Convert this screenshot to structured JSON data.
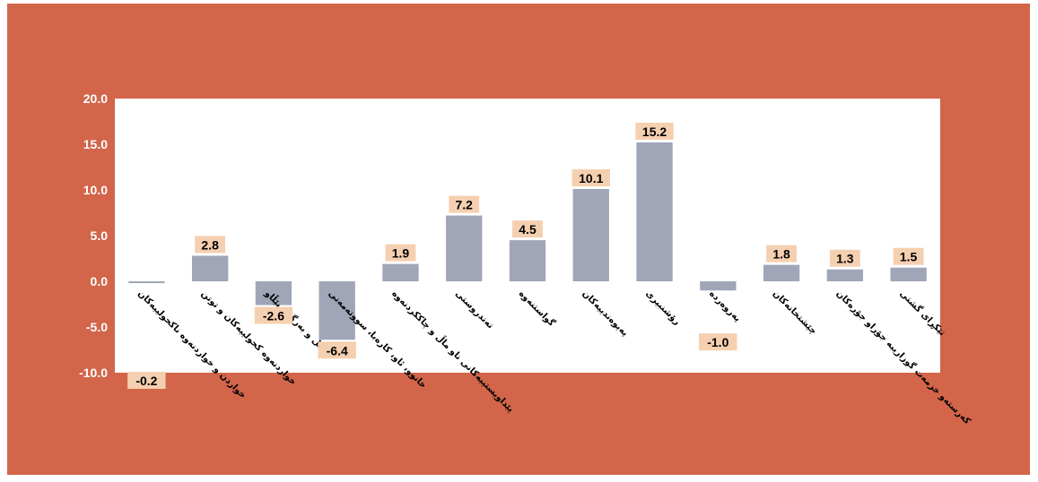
{
  "colors": {
    "background": "#D2654A",
    "plot_area": "#ffffff",
    "bar": "#A0A6B8",
    "label_box": "#F5D0B0"
  },
  "chart_data": {
    "type": "bar",
    "categories": [
      "خواردن و خواردنەوە ناکحولییەکان",
      "خواردنەوە کحولییەکان و توتن",
      "جل و بەرگ و پێڵاو",
      "خانوو، ئاو، کارەبا، سووتەمەنی",
      "پێداویستییەکانی ناو ماڵ و چاککردنەوە",
      "تەندروستی",
      "گواستنەوە",
      "پەیوەندییەکان",
      "رۆشنبیری",
      "پەروەردە",
      "چێشتخانەکان",
      "کەرستەو خزمەت گوزاریبە جۆراو جۆرەکان",
      "تێکڕای گشتی"
    ],
    "values": [
      -0.2,
      2.8,
      -2.6,
      -6.4,
      1.9,
      7.2,
      4.5,
      10.1,
      15.2,
      -1.0,
      1.8,
      1.3,
      1.5
    ],
    "value_labels": [
      "-0.2",
      "2.8",
      "-2.6",
      "-6.4",
      "1.9",
      "7.2",
      "4.5",
      "10.1",
      "15.2",
      "-1.0",
      "1.8",
      "1.3",
      "1.5"
    ],
    "yticks": [
      "20.0",
      "15.0",
      "10.0",
      "5.0",
      "0.0",
      "-5.0",
      "-10.0"
    ],
    "ylim": [
      -10,
      20
    ],
    "grid": false,
    "legend": "none"
  }
}
